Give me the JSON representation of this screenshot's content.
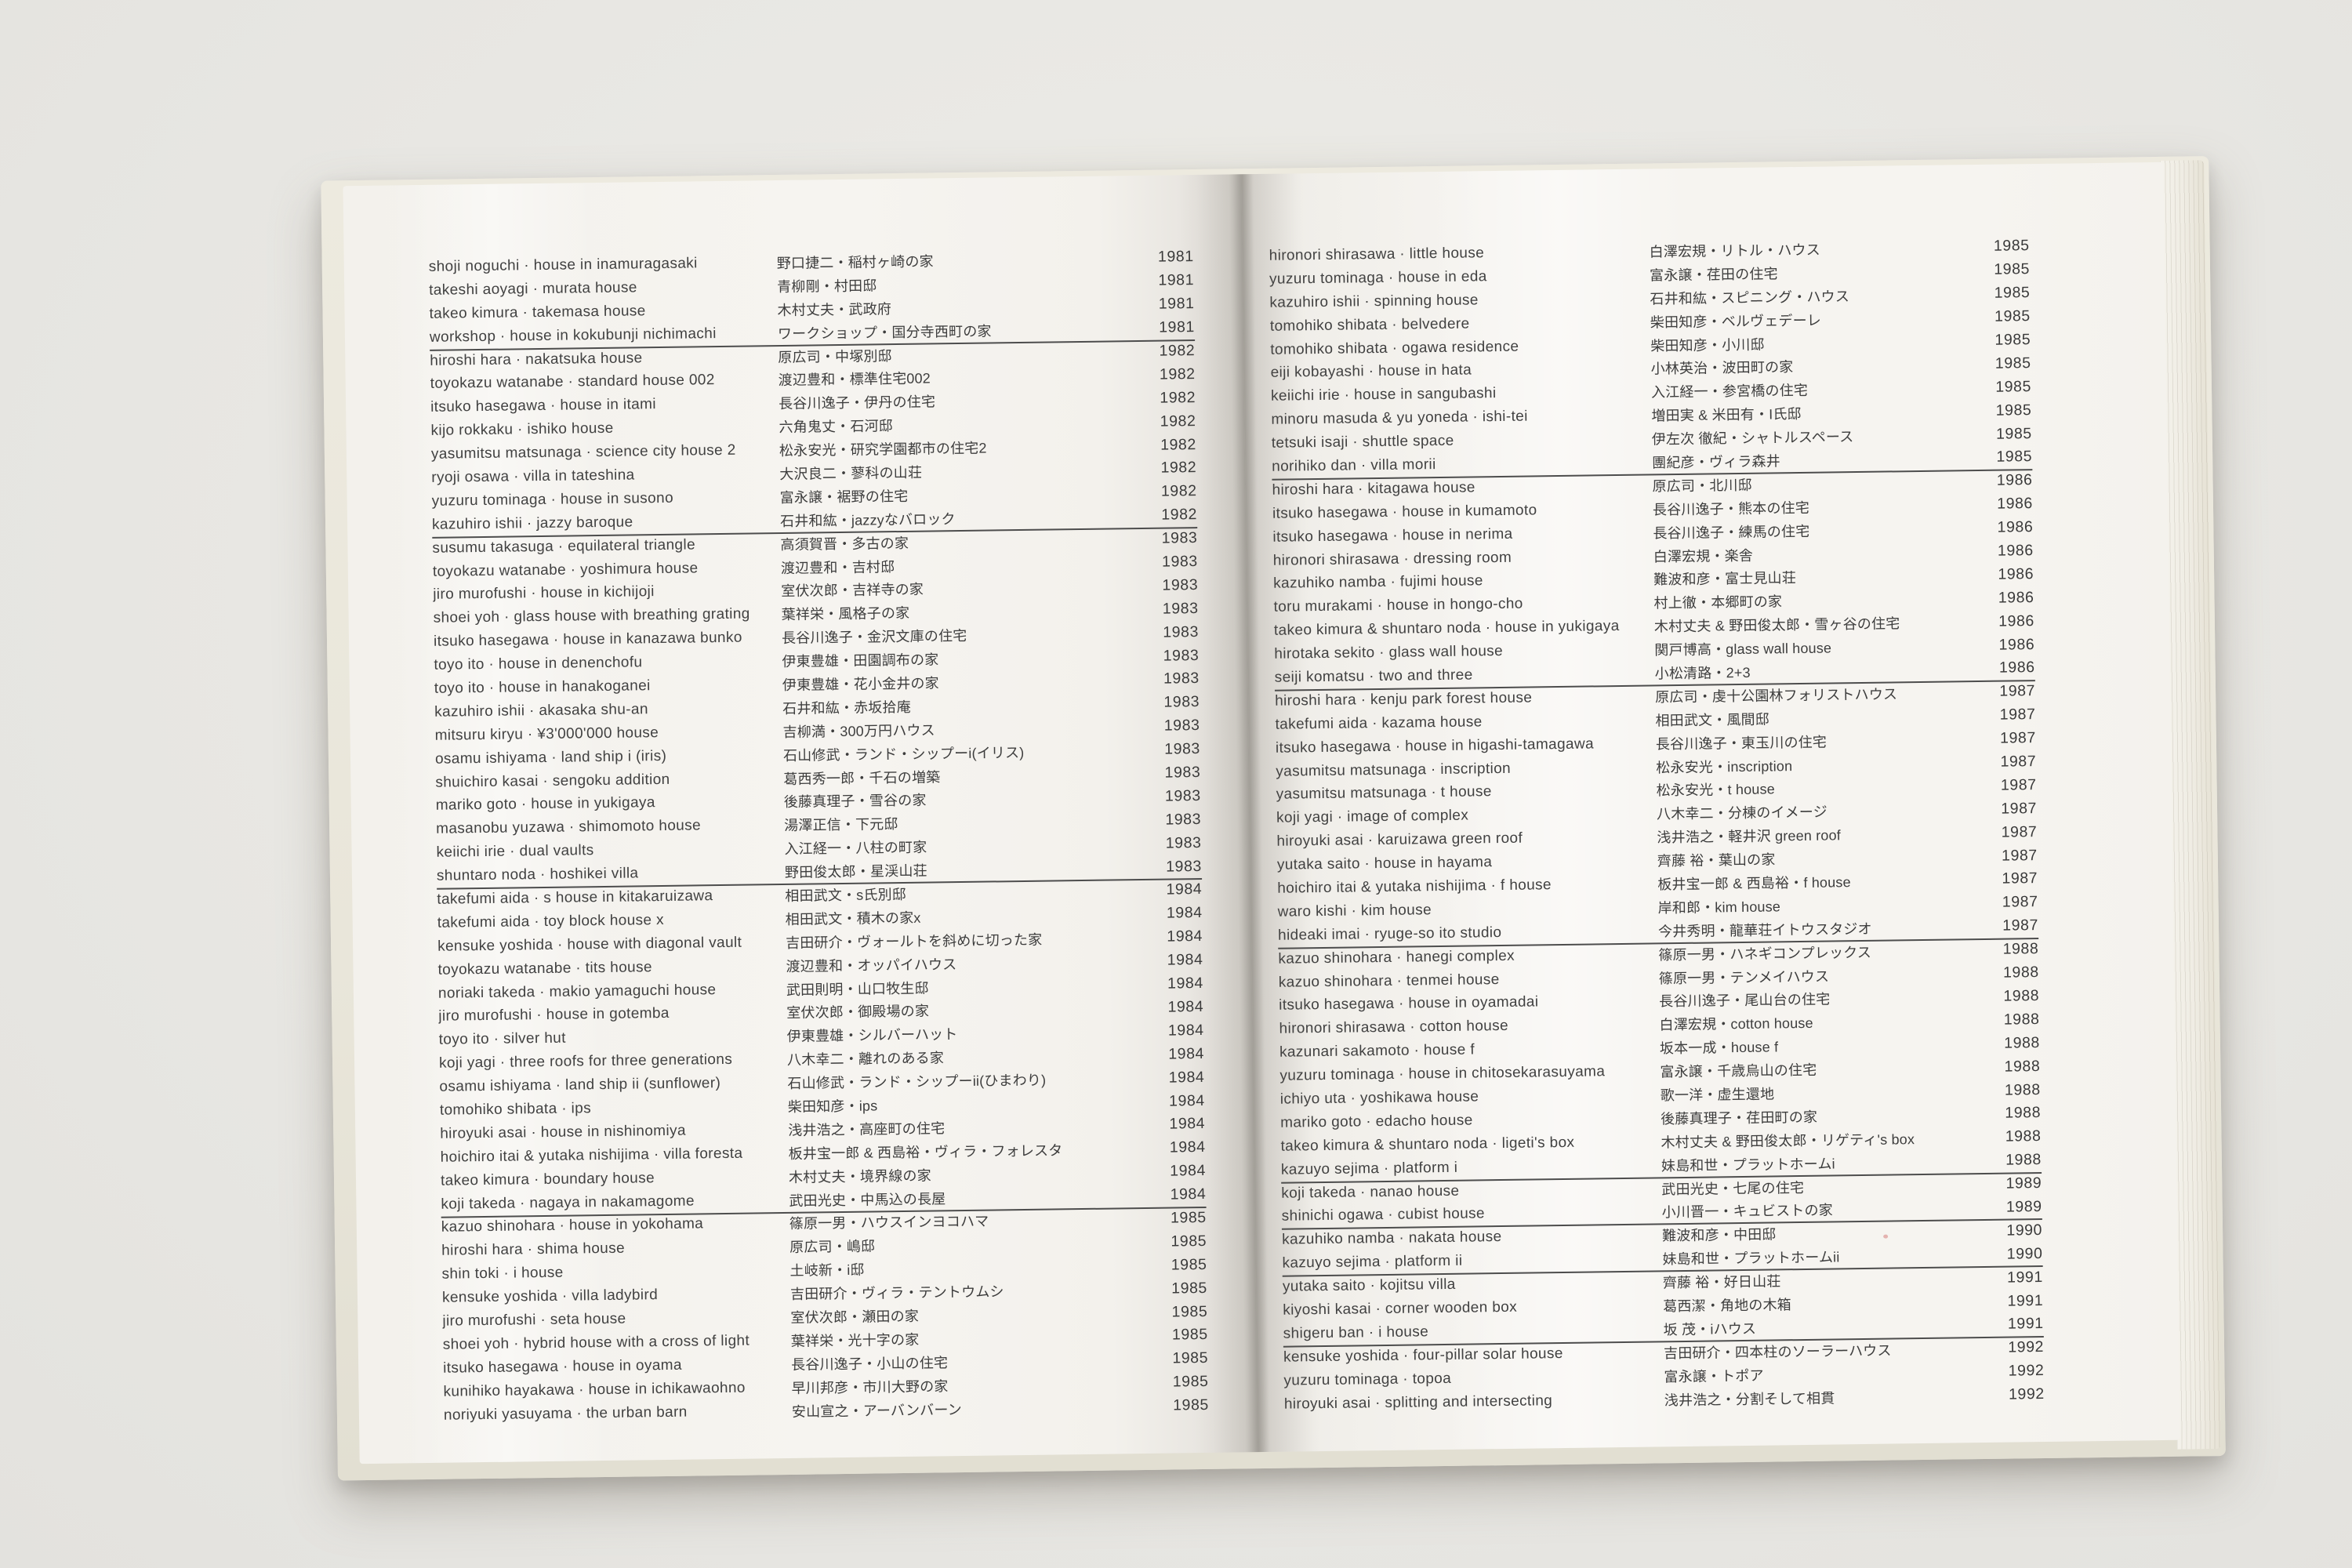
{
  "photo": {
    "background": "#e9e8e4"
  },
  "book": {
    "page_color": "#f6f4f0",
    "cover_color": "#eae7dc",
    "text_color": "#414141",
    "rule_color": "#4d4d4d"
  },
  "pages": [
    {
      "side": "left",
      "groups": [
        {
          "year": "1981",
          "entries": [
            {
              "en": "shoji noguchi · house in inamuragasaki",
              "ja": "野口捷二・稲村ヶ崎の家"
            },
            {
              "en": "takeshi aoyagi · murata house",
              "ja": "青柳剛・村田邸"
            },
            {
              "en": "takeo kimura · takemasa house",
              "ja": "木村丈夫・武政府"
            },
            {
              "en": "workshop · house in kokubunji nichimachi",
              "ja": "ワークショップ・国分寺西町の家"
            }
          ]
        },
        {
          "year": "1982",
          "entries": [
            {
              "en": "hiroshi hara · nakatsuka house",
              "ja": "原広司・中塚別邸"
            },
            {
              "en": "toyokazu watanabe · standard house 002",
              "ja": "渡辺豊和・標準住宅002"
            },
            {
              "en": "itsuko hasegawa · house in itami",
              "ja": "長谷川逸子・伊丹の住宅"
            },
            {
              "en": "kijo rokkaku · ishiko house",
              "ja": "六角鬼丈・石河邸"
            },
            {
              "en": "yasumitsu matsunaga · science city house 2",
              "ja": "松永安光・研究学園都市の住宅2"
            },
            {
              "en": "ryoji osawa · villa in tateshina",
              "ja": "大沢良二・蓼科の山荘"
            },
            {
              "en": "yuzuru tominaga · house in susono",
              "ja": "富永譲・裾野の住宅"
            },
            {
              "en": "kazuhiro ishii · jazzy baroque",
              "ja": "石井和紘・jazzyなバロック"
            }
          ]
        },
        {
          "year": "1983",
          "entries": [
            {
              "en": "susumu takasuga · equilateral triangle",
              "ja": "高須賀晋・多古の家"
            },
            {
              "en": "toyokazu watanabe · yoshimura house",
              "ja": "渡辺豊和・吉村邸"
            },
            {
              "en": "jiro murofushi · house in kichijoji",
              "ja": "室伏次郎・吉祥寺の家"
            },
            {
              "en": "shoei yoh · glass house with breathing grating",
              "ja": "葉祥栄・風格子の家"
            },
            {
              "en": "itsuko hasegawa · house in kanazawa bunko",
              "ja": "長谷川逸子・金沢文庫の住宅"
            },
            {
              "en": "toyo ito · house in denenchofu",
              "ja": "伊東豊雄・田園調布の家"
            },
            {
              "en": "toyo ito · house in hanakoganei",
              "ja": "伊東豊雄・花小金井の家"
            },
            {
              "en": "kazuhiro ishii · akasaka shu-an",
              "ja": "石井和紘・赤坂拾庵"
            },
            {
              "en": "mitsuru kiryu · ¥3'000'000 house",
              "ja": "吉柳満・300万円ハウス"
            },
            {
              "en": "osamu ishiyama · land ship i (iris)",
              "ja": "石山修武・ランド・シップーi(イリス)"
            },
            {
              "en": "shuichiro kasai · sengoku addition",
              "ja": "葛西秀一郎・千石の増築"
            },
            {
              "en": "mariko goto · house in yukigaya",
              "ja": "後藤真理子・雪谷の家"
            },
            {
              "en": "masanobu yuzawa · shimomoto house",
              "ja": "湯澤正信・下元邸"
            },
            {
              "en": "keiichi irie · dual vaults",
              "ja": "入江経一・八柱の町家"
            },
            {
              "en": "shuntaro noda · hoshikei villa",
              "ja": "野田俊太郎・星渓山荘"
            }
          ]
        },
        {
          "year": "1984",
          "entries": [
            {
              "en": "takefumi aida · s house in kitakaruizawa",
              "ja": "相田武文・s氏別邸"
            },
            {
              "en": "takefumi aida · toy block house x",
              "ja": "相田武文・積木の家x"
            },
            {
              "en": "kensuke yoshida · house with diagonal vault",
              "ja": "吉田研介・ヴォールトを斜めに切った家"
            },
            {
              "en": "toyokazu watanabe · tits house",
              "ja": "渡辺豊和・オッパイハウス"
            },
            {
              "en": "noriaki takeda · makio yamaguchi house",
              "ja": "武田則明・山口牧生邸"
            },
            {
              "en": "jiro murofushi · house in gotemba",
              "ja": "室伏次郎・御殿場の家"
            },
            {
              "en": "toyo ito · silver hut",
              "ja": "伊東豊雄・シルバーハット"
            },
            {
              "en": "koji yagi · three roofs for three generations",
              "ja": "八木幸二・離れのある家"
            },
            {
              "en": "osamu ishiyama · land ship ii (sunflower)",
              "ja": "石山修武・ランド・シップーii(ひまわり)"
            },
            {
              "en": "tomohiko shibata · ips",
              "ja": "柴田知彦・ips"
            },
            {
              "en": "hiroyuki asai · house in nishinomiya",
              "ja": "浅井浩之・高座町の住宅"
            },
            {
              "en": "hoichiro itai & yutaka nishijima · villa foresta",
              "ja": "板井宝一郎 & 西島裕・ヴィラ・フォレスタ"
            },
            {
              "en": "takeo kimura · boundary house",
              "ja": "木村丈夫・境界線の家"
            },
            {
              "en": "koji takeda · nagaya in nakamagome",
              "ja": "武田光史・中馬込の長屋"
            }
          ]
        },
        {
          "year": "1985",
          "entries": [
            {
              "en": "kazuo shinohara · house in yokohama",
              "ja": "篠原一男・ハウスインヨコハマ"
            },
            {
              "en": "hiroshi hara · shima house",
              "ja": "原広司・嶋邸"
            },
            {
              "en": "shin toki · i house",
              "ja": "土岐新・i邸"
            },
            {
              "en": "kensuke yoshida · villa ladybird",
              "ja": "吉田研介・ヴィラ・テントウムシ"
            },
            {
              "en": "jiro murofushi · seta house",
              "ja": "室伏次郎・瀬田の家"
            },
            {
              "en": "shoei yoh · hybrid house with a cross of light",
              "ja": "葉祥栄・光十字の家"
            },
            {
              "en": "itsuko hasegawa · house in oyama",
              "ja": "長谷川逸子・小山の住宅"
            },
            {
              "en": "kunihiko hayakawa · house in ichikawaohno",
              "ja": "早川邦彦・市川大野の家"
            },
            {
              "en": "noriyuki yasuyama · the urban barn",
              "ja": "安山宣之・アーバンバーン"
            }
          ]
        }
      ]
    },
    {
      "side": "right",
      "groups": [
        {
          "year": "1985",
          "entries": [
            {
              "en": "hironori shirasawa · little house",
              "ja": "白澤宏規・リトル・ハウス"
            },
            {
              "en": "yuzuru tominaga · house in eda",
              "ja": "富永譲・荏田の住宅"
            },
            {
              "en": "kazuhiro ishii · spinning house",
              "ja": "石井和紘・スピニング・ハウス"
            },
            {
              "en": "tomohiko shibata · belvedere",
              "ja": "柴田知彦・ベルヴェデーレ"
            },
            {
              "en": "tomohiko shibata · ogawa residence",
              "ja": "柴田知彦・小川邸"
            },
            {
              "en": "eiji kobayashi · house in hata",
              "ja": "小林英治・波田町の家"
            },
            {
              "en": "keiichi irie · house in sangubashi",
              "ja": "入江経一・参宮橋の住宅"
            },
            {
              "en": "minoru masuda & yu yoneda · ishi-tei",
              "ja": "増田実 & 米田有・I氏邸"
            },
            {
              "en": "tetsuki isaji · shuttle space",
              "ja": "伊左次 徹紀・シャトルスペース"
            },
            {
              "en": "norihiko dan · villa morii",
              "ja": "團紀彦・ヴィラ森井"
            }
          ]
        },
        {
          "year": "1986",
          "entries": [
            {
              "en": "hiroshi hara · kitagawa house",
              "ja": "原広司・北川邸"
            },
            {
              "en": "itsuko hasegawa · house in kumamoto",
              "ja": "長谷川逸子・熊本の住宅"
            },
            {
              "en": "itsuko hasegawa · house in nerima",
              "ja": "長谷川逸子・練馬の住宅"
            },
            {
              "en": "hironori shirasawa · dressing room",
              "ja": "白澤宏規・楽舎"
            },
            {
              "en": "kazuhiko namba · fujimi house",
              "ja": "難波和彦・富士見山荘"
            },
            {
              "en": "toru murakami · house in hongo-cho",
              "ja": "村上徹・本郷町の家"
            },
            {
              "en": "takeo kimura & shuntaro noda · house in yukigaya",
              "ja": "木村丈夫 & 野田俊太郎・雪ヶ谷の住宅"
            },
            {
              "en": "hirotaka sekito · glass wall house",
              "ja": "関戸博高・glass wall house"
            },
            {
              "en": "seiji komatsu · two and three",
              "ja": "小松清路・2+3"
            }
          ]
        },
        {
          "year": "1987",
          "entries": [
            {
              "en": "hiroshi hara · kenju park forest house",
              "ja": "原広司・虔十公園林フォリストハウス"
            },
            {
              "en": "takefumi aida · kazama house",
              "ja": "相田武文・風間邸"
            },
            {
              "en": "itsuko hasegawa · house in higashi-tamagawa",
              "ja": "長谷川逸子・東玉川の住宅"
            },
            {
              "en": "yasumitsu matsunaga · inscription",
              "ja": "松永安光・inscription"
            },
            {
              "en": "yasumitsu matsunaga · t house",
              "ja": "松永安光・t house"
            },
            {
              "en": "koji yagi · image of complex",
              "ja": "八木幸二・分棟のイメージ"
            },
            {
              "en": "hiroyuki asai · karuizawa green roof",
              "ja": "浅井浩之・軽井沢 green roof"
            },
            {
              "en": "yutaka saito · house in hayama",
              "ja": "齊藤 裕・葉山の家"
            },
            {
              "en": "hoichiro itai & yutaka nishijima · f house",
              "ja": "板井宝一郎 & 西島裕・f house"
            },
            {
              "en": "waro kishi · kim house",
              "ja": "岸和郎・kim house"
            },
            {
              "en": "hideaki imai · ryuge-so ito studio",
              "ja": "今井秀明・龍華荘イトウスタジオ"
            }
          ]
        },
        {
          "year": "1988",
          "entries": [
            {
              "en": "kazuo shinohara · hanegi complex",
              "ja": "篠原一男・ハネギコンプレックス"
            },
            {
              "en": "kazuo shinohara · tenmei house",
              "ja": "篠原一男・テンメイハウス"
            },
            {
              "en": "itsuko hasegawa · house in oyamadai",
              "ja": "長谷川逸子・尾山台の住宅"
            },
            {
              "en": "hironori shirasawa · cotton house",
              "ja": "白澤宏規・cotton house"
            },
            {
              "en": "kazunari sakamoto · house f",
              "ja": "坂本一成・house f"
            },
            {
              "en": "yuzuru tominaga · house in chitosekarasuyama",
              "ja": "富永譲・千歳烏山の住宅"
            },
            {
              "en": "ichiyo uta · yoshikawa house",
              "ja": "歌一洋・虚生還地"
            },
            {
              "en": "mariko goto · edacho house",
              "ja": "後藤真理子・荏田町の家"
            },
            {
              "en": "takeo kimura & shuntaro noda · ligeti's box",
              "ja": "木村丈夫 & 野田俊太郎・リゲティ's box"
            },
            {
              "en": "kazuyo sejima · platform i",
              "ja": "妹島和世・プラットホームi"
            }
          ]
        },
        {
          "year": "1989",
          "entries": [
            {
              "en": "koji takeda · nanao house",
              "ja": "武田光史・七尾の住宅"
            },
            {
              "en": "shinichi ogawa · cubist house",
              "ja": "小川晋一・キュビストの家"
            }
          ]
        },
        {
          "year": "1990",
          "entries": [
            {
              "en": "kazuhiko namba · nakata house",
              "ja": "難波和彦・中田邸"
            },
            {
              "en": "kazuyo sejima · platform ii",
              "ja": "妹島和世・プラットホームii"
            }
          ]
        },
        {
          "year": "1991",
          "entries": [
            {
              "en": "yutaka saito · kojitsu villa",
              "ja": "齊藤 裕・好日山荘"
            },
            {
              "en": "kiyoshi kasai · corner wooden box",
              "ja": "葛西潔・角地の木箱"
            },
            {
              "en": "shigeru ban · i house",
              "ja": "坂 茂・iハウス"
            }
          ]
        },
        {
          "year": "1992",
          "entries": [
            {
              "en": "kensuke yoshida · four-pillar solar house",
              "ja": "吉田研介・四本柱のソーラーハウス"
            },
            {
              "en": "yuzuru tominaga · topoa",
              "ja": "富永譲・トポア"
            },
            {
              "en": "hiroyuki asai · splitting and intersecting",
              "ja": "浅井浩之・分割そして相貫"
            }
          ]
        }
      ]
    }
  ]
}
